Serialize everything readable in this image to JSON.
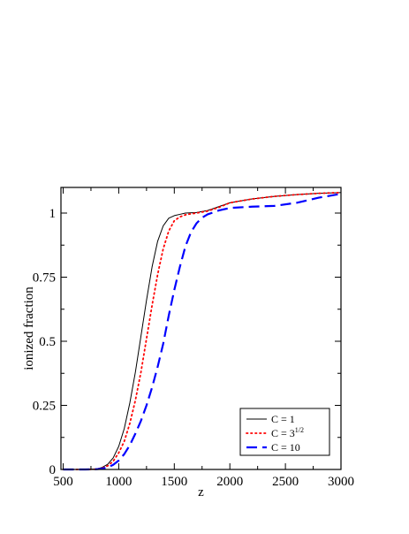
{
  "chart_data": {
    "type": "line",
    "title": "",
    "xlabel": "z",
    "ylabel": "ionized fraction",
    "xlim": [
      480,
      3000
    ],
    "ylim": [
      0,
      1.1
    ],
    "grid": false,
    "legend_placement": "bottom-right",
    "x_ticks": [
      500,
      1000,
      1500,
      2000,
      2500,
      3000
    ],
    "x_tick_labels": [
      "500",
      "1000",
      "1500",
      "2000",
      "2500",
      "3000"
    ],
    "y_ticks": [
      0,
      0.25,
      0.5,
      0.75,
      1
    ],
    "y_tick_labels": [
      "0",
      "0.25",
      "0.5",
      "0.75",
      "1"
    ],
    "series": [
      {
        "name": "C = 1",
        "name_base": "C = 1",
        "name_sup": "",
        "style": "solid",
        "color": "#000000",
        "x": [
          500,
          700,
          800,
          850,
          900,
          950,
          1000,
          1050,
          1100,
          1150,
          1200,
          1250,
          1300,
          1350,
          1400,
          1450,
          1500,
          1550,
          1600,
          1700,
          1800,
          1900,
          2000,
          2200,
          2400,
          2600,
          2800,
          3000
        ],
        "y": [
          0.0,
          0.0,
          0.002,
          0.008,
          0.02,
          0.045,
          0.09,
          0.16,
          0.26,
          0.38,
          0.52,
          0.66,
          0.79,
          0.89,
          0.95,
          0.98,
          0.99,
          0.995,
          1.0,
          1.002,
          1.01,
          1.025,
          1.04,
          1.055,
          1.065,
          1.072,
          1.077,
          1.08
        ]
      },
      {
        "name": "C = 3^1/2",
        "name_base": "C = 3",
        "name_sup": "1/2",
        "style": "dotted",
        "color": "#ff0000",
        "x": [
          500,
          700,
          800,
          850,
          900,
          950,
          1000,
          1050,
          1100,
          1150,
          1200,
          1250,
          1300,
          1350,
          1400,
          1450,
          1500,
          1550,
          1600,
          1650,
          1700,
          1800,
          1900,
          2000,
          2200,
          2400,
          2600,
          2800,
          3000
        ],
        "y": [
          0.0,
          0.0,
          0.001,
          0.005,
          0.014,
          0.032,
          0.065,
          0.11,
          0.18,
          0.27,
          0.38,
          0.51,
          0.64,
          0.76,
          0.86,
          0.93,
          0.97,
          0.985,
          0.993,
          0.997,
          1.0,
          1.008,
          1.022,
          1.04,
          1.055,
          1.065,
          1.072,
          1.077,
          1.08
        ]
      },
      {
        "name": "C = 10",
        "name_base": "C = 10",
        "name_sup": "",
        "style": "dashed",
        "color": "#0000ff",
        "x": [
          500,
          700,
          800,
          850,
          900,
          950,
          1000,
          1050,
          1100,
          1150,
          1200,
          1250,
          1300,
          1350,
          1400,
          1450,
          1500,
          1550,
          1600,
          1650,
          1700,
          1750,
          1800,
          1900,
          2000,
          2200,
          2400,
          2600,
          2800,
          3000
        ],
        "y": [
          0.0,
          0.0,
          0.001,
          0.003,
          0.008,
          0.018,
          0.035,
          0.06,
          0.095,
          0.14,
          0.19,
          0.25,
          0.32,
          0.4,
          0.49,
          0.6,
          0.7,
          0.79,
          0.87,
          0.925,
          0.96,
          0.982,
          0.995,
          1.01,
          1.02,
          1.025,
          1.028,
          1.04,
          1.06,
          1.075
        ]
      }
    ]
  }
}
